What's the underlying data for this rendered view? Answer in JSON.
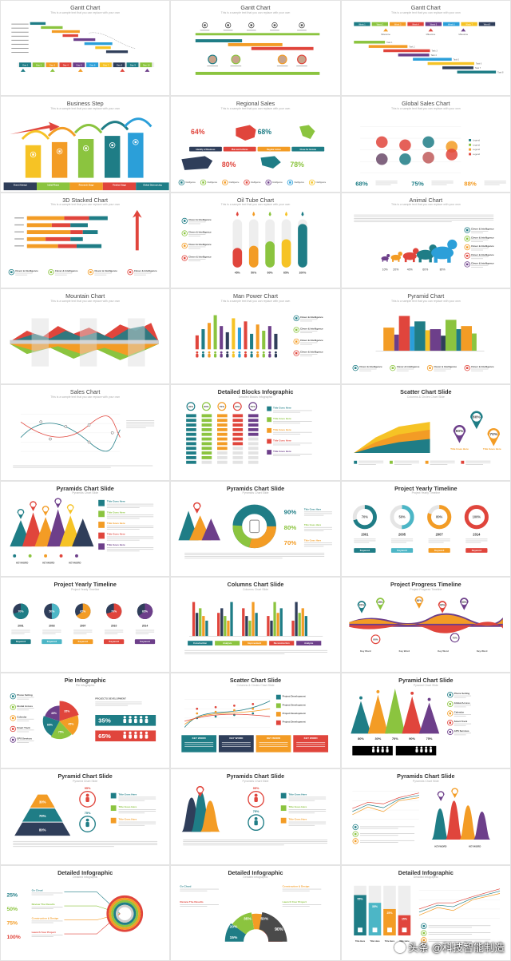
{
  "slides": [
    {
      "id": "gantt-1",
      "title": "Gantt Chart",
      "subtitle": "This is a sample text that you can replace with your own"
    },
    {
      "id": "gantt-2",
      "title": "Gantt Chart",
      "subtitle": "This is a sample text that you can replace with your own"
    },
    {
      "id": "gantt-3",
      "title": "Gantt Chart",
      "subtitle": "This is a sample text that you can replace with your own"
    },
    {
      "id": "business-step",
      "title": "Business Step",
      "subtitle": "This is a sample text that you can replace with your own"
    },
    {
      "id": "regional-sales",
      "title": "Regional Sales",
      "subtitle": "This is a sample text that you can replace with your own"
    },
    {
      "id": "global-sales",
      "title": "Global Sales Chart",
      "subtitle": "This is a sample text that you can replace with your own"
    },
    {
      "id": "stacked-3d",
      "title": "3D Stacked Chart",
      "subtitle": "This is a sample text that you can replace with your own"
    },
    {
      "id": "oil-tube",
      "title": "Oil Tube Chart",
      "subtitle": "This is a sample text that you can replace with your own"
    },
    {
      "id": "animal",
      "title": "Animal Chart",
      "subtitle": "This is a sample text that you can replace with your own"
    },
    {
      "id": "mountain",
      "title": "Mountain Chart",
      "subtitle": "This is a sample text that you can replace with your own"
    },
    {
      "id": "man-power",
      "title": "Man Power Chart",
      "subtitle": "This is a sample text that you can replace with your own"
    },
    {
      "id": "pyramid",
      "title": "Pyramid Chart",
      "subtitle": "This is a sample text that you can replace with your own"
    },
    {
      "id": "sales",
      "title": "Sales Chart",
      "subtitle": "This is a sample text that you can replace with your own"
    },
    {
      "id": "detailed-blocks",
      "title": "Detailed Blocks Infographic",
      "subtitle": "Detailed Blocks Infographic",
      "bold": true
    },
    {
      "id": "scatter-1",
      "title": "Scatter Chart Slide",
      "subtitle": "Columns & Circles Chart Slide",
      "bold": true
    },
    {
      "id": "pyramids-1",
      "title": "Pyramids Chart Slide",
      "subtitle": "Pyramids Chart Slide",
      "bold": true
    },
    {
      "id": "pyramids-2",
      "title": "Pyramids Chart Slide",
      "subtitle": "Pyramids Chart Slide",
      "bold": true
    },
    {
      "id": "yearly-1",
      "title": "Project Yearly Timeline",
      "subtitle": "Project Yearly Timeline",
      "bold": true
    },
    {
      "id": "yearly-2",
      "title": "Project Yearly Timeline",
      "subtitle": "Project Yearly Timeline",
      "bold": true
    },
    {
      "id": "columns",
      "title": "Columns Chart Slide",
      "subtitle": "Columns Chart Slide",
      "bold": true
    },
    {
      "id": "progress",
      "title": "Project Progress Timeline",
      "subtitle": "Project Progress Timeline",
      "bold": true
    },
    {
      "id": "pie-info",
      "title": "Pie Infographic",
      "subtitle": "Pie Infographic",
      "bold": true
    },
    {
      "id": "scatter-2",
      "title": "Scatter Chart Slide",
      "subtitle": "Columns & Circles Chart Slide",
      "bold": true
    },
    {
      "id": "pyramid-2",
      "title": "Pyramid Chart Slide",
      "subtitle": "Pyramid Chart Slide",
      "bold": true
    },
    {
      "id": "pyramid-3",
      "title": "Pyramid Chart Slide",
      "subtitle": "Pyramid Chart Slide",
      "bold": true
    },
    {
      "id": "pyramids-3",
      "title": "Pyramids Chart Slide",
      "subtitle": "Pyramids Chart Slide",
      "bold": true
    },
    {
      "id": "pyramids-4",
      "title": "Pyramids Chart Slide",
      "subtitle": "Pyramids Chart Slide",
      "bold": true
    },
    {
      "id": "detailed-1",
      "title": "Detailed Infographic",
      "subtitle": "Detailed Infographic",
      "bold": true
    },
    {
      "id": "detailed-2",
      "title": "Detailed Infographic",
      "subtitle": "Detailed Infographic",
      "bold": true
    },
    {
      "id": "detailed-3",
      "title": "Detailed Infographic",
      "subtitle": "Detailed Infographic",
      "bold": true
    }
  ],
  "colors": {
    "teal": "#1f7d86",
    "green": "#8bc43f",
    "orange": "#f39c25",
    "red": "#e0453c",
    "purple": "#6d3f8a",
    "navy": "#2f3e5a",
    "blue": "#2b9fd9",
    "yellow": "#f6c325",
    "cyan": "#4cb6c6",
    "lime": "#b8d432"
  },
  "labels": {
    "gantt1": {
      "days": [
        "Day 1",
        "Day 2",
        "Day 3",
        "Day 4",
        "Day 5",
        "Day 6",
        "Day 7",
        "Day 8",
        "Day 9",
        "Day 10"
      ]
    },
    "gantt3": {
      "weeks": [
        "Week 1",
        "Week 2",
        "Week 3",
        "Week 4",
        "Week 5",
        "Week 6",
        "Week 7",
        "Week 8"
      ],
      "milestones": [
        "Milestone",
        "Milestone",
        "Milestone"
      ],
      "tasks": [
        "Task 1",
        "Task 2",
        "Task 3",
        "Task 4",
        "Task 5",
        "Task 6",
        "Task 7",
        "Task 8"
      ]
    },
    "business": {
      "steps": [
        "Event Attempt",
        "Initial Phase",
        "Research Stage",
        "Finalize Stage",
        "Global Outsourcing"
      ]
    },
    "regional": {
      "pcts": [
        "64%",
        "68%",
        "80%",
        "78%"
      ],
      "chips": [
        "Identify of Business",
        "Plan and Achieve",
        "Regular Action",
        "Close for Income"
      ],
      "footer": [
        "Intelligence",
        "Intelligence",
        "Intelligence",
        "Intelligence",
        "Intelligence",
        "Intelligence",
        "Intelligence"
      ]
    },
    "global": {
      "pcts": [
        "68%",
        "75%",
        "88%"
      ],
      "legend": [
        "Legend",
        "Legend",
        "Legend",
        "Legend"
      ]
    },
    "oil": {
      "pcts": [
        "45%",
        "50%",
        "60%",
        "65%",
        "100%"
      ],
      "items": [
        "Clever & Intelligence",
        "Clever & Intelligence",
        "Clever & Intelligence",
        "Clever & Intelligence"
      ]
    },
    "animal": {
      "pcts": [
        "10%",
        "20%",
        "40%",
        "60%",
        "80%"
      ],
      "items": [
        "Clever & Intelligence",
        "Clever & Intelligence",
        "Clever & Intelligence",
        "Clever & Intelligence",
        "Clever & Intelligence"
      ]
    },
    "stacked": {
      "items": [
        "Clever & Intelligence",
        "Clever & Intelligence",
        "Clever & Intelligence",
        "Clever & Intelligence"
      ]
    },
    "manpower": {
      "items": [
        "Clever & Intelligence",
        "Clever & Intelligence",
        "Clever & Intelligence",
        "Clever & Intelligence"
      ]
    },
    "pyramid": {
      "items": [
        "Clever & Intelligence",
        "Clever & Intelligence",
        "Clever & Intelligence",
        "Clever & Intelligence"
      ]
    },
    "blocks": {
      "pcts": [
        "90%",
        "80%",
        "70%",
        "60%",
        "50%"
      ],
      "titles": [
        "Title Goes Here",
        "Title Goes Here",
        "Title Goes Here",
        "Title Goes Here",
        "Title Goes Here"
      ]
    },
    "scatter1": {
      "pcts": [
        "90%",
        "80%",
        "70%"
      ],
      "titles": [
        "Title Goes Here",
        "Title Goes Here"
      ]
    },
    "pyramids1": {
      "titles": [
        "Title Goes Here",
        "Title Goes Here",
        "Title Goes Here",
        "Title Goes Here",
        "Title Goes Here"
      ],
      "keywords": [
        "KEYWORD",
        "KEYWORD",
        "KEYWORD"
      ]
    },
    "pyramids2": {
      "pcts": [
        "90%",
        "80%",
        "70%"
      ],
      "titles": [
        "Title Goes Here",
        "Title Goes Here",
        "Title Goes Here"
      ]
    },
    "yearly1": {
      "pcts": [
        "70%",
        "50%",
        "80%",
        "100%"
      ],
      "years": [
        "2001",
        "2005",
        "2007",
        "2014"
      ],
      "keys": [
        "Keyword",
        "Keyword",
        "Keyword",
        "Keyword"
      ]
    },
    "yearly2": {
      "pcts": [
        "70%",
        "50%",
        "65%",
        "70%",
        "65%"
      ],
      "years": [
        "2001",
        "2003",
        "2007",
        "2010",
        "2014"
      ],
      "keys": [
        "Keyword",
        "Keyword",
        "Keyword",
        "Keyword",
        "Keyword"
      ]
    },
    "columns": {
      "tabs": [
        "Construction",
        "Analysis",
        "Improvement",
        "Reconstruction",
        "Analysis"
      ]
    },
    "progress": {
      "pcts": [
        "20%",
        "25%",
        "30%",
        "40%",
        "50%",
        "80%",
        "70%"
      ],
      "labels": [
        "Key Word",
        "Key Word",
        "Key Word",
        "Key Word"
      ]
    },
    "pie": {
      "pcts": [
        "35%",
        "45%",
        "75%",
        "65%",
        "45%"
      ],
      "items": [
        "Phone Setting",
        "Global Access",
        "Calendar",
        "Smart Track",
        "GPS Services"
      ],
      "stats": [
        "35%",
        "65%"
      ],
      "heading": "PROJECTS DEVELOPMENT"
    },
    "scatter2": {
      "legend": [
        "Project Development",
        "Project Development",
        "Project Development",
        "Project Development"
      ],
      "keys": [
        "KEY WORD",
        "KEY WORD",
        "KEY WORD",
        "KEY WORD"
      ]
    },
    "pyramid2": {
      "pcts": [
        "80%",
        "30%",
        "70%",
        "90%",
        "75%"
      ],
      "items": [
        "Phone Setting",
        "Global Access",
        "Calendar",
        "Smart Track",
        "GPS Services"
      ],
      "stats": [
        "35%",
        "65%"
      ]
    },
    "pyramid3": {
      "pcts": [
        "30%",
        "70%",
        "80%"
      ],
      "stats": [
        "95%",
        "75%"
      ],
      "titles": [
        "Title Goes Here",
        "Title Goes Here",
        "Title Goes Here"
      ]
    },
    "pyramids3": {
      "stats": [
        "95%",
        "75%"
      ],
      "titles": [
        "Title Goes Here",
        "Title Goes Here",
        "Title Goes Here"
      ]
    },
    "pyramids4": {
      "keywords": [
        "KEYWORD",
        "KEYWORD"
      ]
    },
    "detailed1": {
      "pcts": [
        "25%",
        "50%",
        "75%",
        "100%"
      ],
      "items": [
        "Go Cloud",
        "Review The Results",
        "Construction & Design",
        "Launch Your Project"
      ]
    },
    "detailed2": {
      "pcts": [
        "20%",
        "35%",
        "50%",
        "15%",
        "90%"
      ],
      "items": [
        "Go Cloud",
        "Construction & Design",
        "Construction & Design",
        "Review The Results",
        "Launch Your Project"
      ]
    },
    "detailed3": {
      "pcts": [
        "55%",
        "35%",
        "25%",
        "15%"
      ],
      "items": [
        "Title Here",
        "Title Here",
        "Title Here",
        "Title Here"
      ]
    }
  },
  "watermark": {
    "text": "头条 @科技智能制造"
  }
}
